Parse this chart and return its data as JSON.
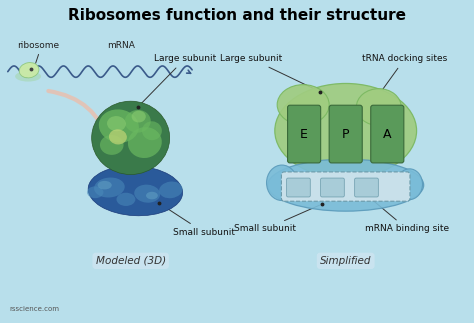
{
  "title": "Ribosomes function and their structure",
  "title_fontsize": 11,
  "title_fontweight": "bold",
  "background_color": "#b8dfeb",
  "label_ribosome": "ribosome",
  "label_mrna": "mRNA",
  "label_large_subunit": "Large subunit",
  "label_trna": "tRNA docking sites",
  "label_small_subunit": "Small subunit",
  "label_mrna_binding": "mRNA binding site",
  "label_modeled": "Modeled (3D)",
  "label_simplified": "Simplified",
  "label_E": "E",
  "label_P": "P",
  "label_A": "A",
  "label_watermark": "rsscience.com",
  "green_large_base": "#3a7a4a",
  "green_large_light": "#6ab860",
  "green_large_lighter": "#8acc70",
  "green_yellow": "#c8d878",
  "green_simp_outer": "#a0cc80",
  "green_simp_inner": "#5a9a5a",
  "blue_small_base": "#2a5a9a",
  "blue_small_light": "#4a8aba",
  "blue_small_lighter": "#6aaaca",
  "blue_simp_outer": "#7abcd8",
  "blue_simp_inner": "#90cce0",
  "mrna_rect_color": "#a8ccd8",
  "mrna_rect_inner": "#c8e0ea",
  "wave_color": "#3a5a8a",
  "arrow_color": "#e8c0b0",
  "ribosome_body": "#c8e8a8",
  "ribosome_shadow": "#a8d8b8"
}
